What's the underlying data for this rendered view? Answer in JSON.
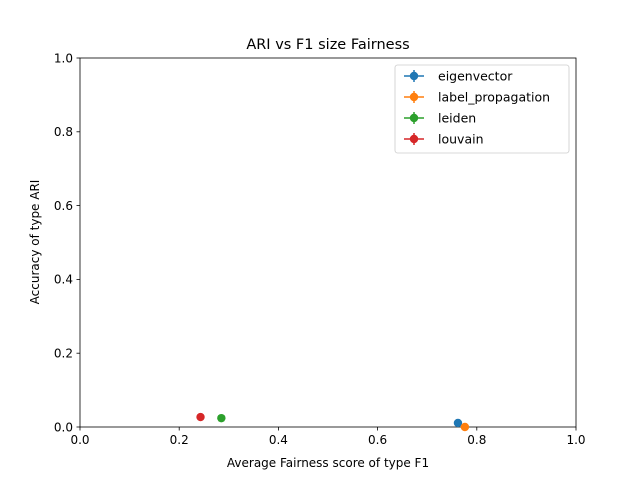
{
  "chart_data": {
    "type": "scatter",
    "title": "ARI vs F1 size Fairness",
    "xlabel": "Average Fairness score of type F1",
    "ylabel": "Accuracy of type ARI",
    "xlim": [
      0.0,
      1.0
    ],
    "ylim": [
      0.0,
      1.0
    ],
    "xticks": [
      "0.0",
      "0.2",
      "0.4",
      "0.6",
      "0.8",
      "1.0"
    ],
    "yticks": [
      "0.0",
      "0.2",
      "0.4",
      "0.6",
      "0.8",
      "1.0"
    ],
    "grid": false,
    "legend_position": "top-right",
    "series": [
      {
        "name": "eigenvector",
        "color": "#1f77b4",
        "x": 0.762,
        "y": 0.011
      },
      {
        "name": "label_propagation",
        "color": "#ff7f0e",
        "x": 0.776,
        "y": 0.0
      },
      {
        "name": "leiden",
        "color": "#2ca02c",
        "x": 0.285,
        "y": 0.024
      },
      {
        "name": "louvain",
        "color": "#d62728",
        "x": 0.243,
        "y": 0.027
      }
    ]
  }
}
